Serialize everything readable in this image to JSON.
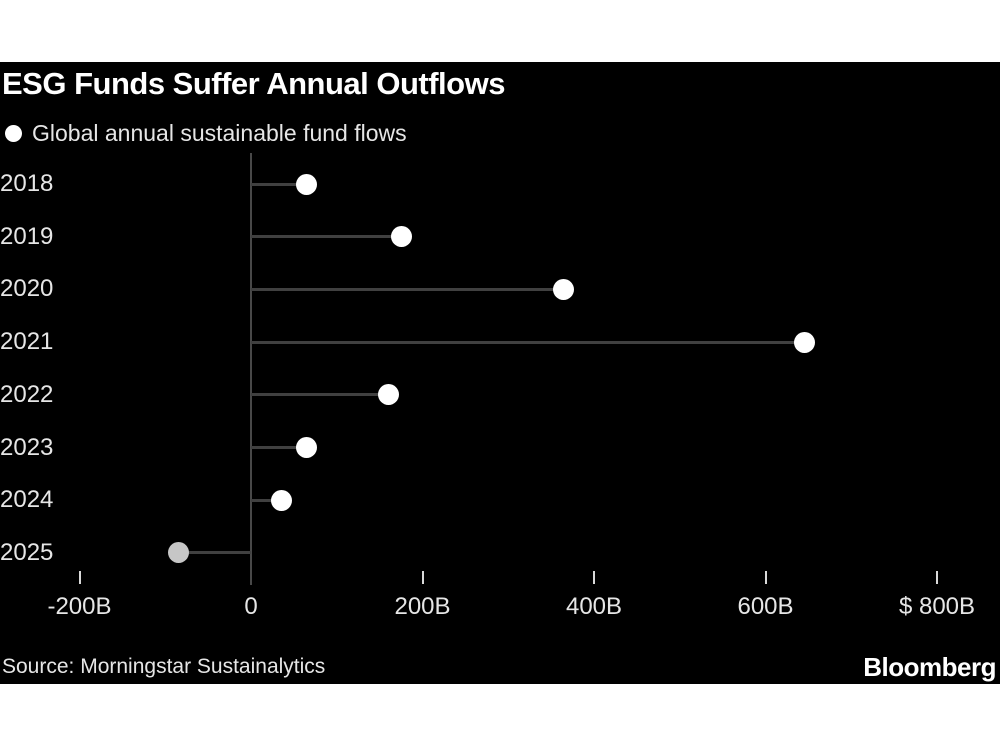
{
  "header": {
    "title": "ESG Funds Suffer Annual Outflows"
  },
  "legend": {
    "marker": "circle-icon",
    "label": "Global annual sustainable fund flows"
  },
  "chart_data": {
    "type": "scatter",
    "subtype": "lollipop",
    "orientation": "horizontal",
    "title": "ESG Funds Suffer Annual Outflows",
    "series_name": "Global annual sustainable fund flows",
    "categories": [
      "2018",
      "2019",
      "2020",
      "2021",
      "2022",
      "2023",
      "2024",
      "2025"
    ],
    "values": [
      65,
      175,
      365,
      645,
      160,
      65,
      35,
      -85
    ],
    "unit": "billions of US dollars",
    "xlabel": "",
    "ylabel": "",
    "xlim": [
      -200,
      800
    ],
    "grid": false,
    "legend_position": "top-left",
    "x_ticks": [
      {
        "value": -200,
        "label": "-200B"
      },
      {
        "value": 0,
        "label": "0"
      },
      {
        "value": 200,
        "label": "200B"
      },
      {
        "value": 400,
        "label": "400B"
      },
      {
        "value": 600,
        "label": "600B"
      },
      {
        "value": 800,
        "label": "$ 800B"
      }
    ],
    "muted_categories": [
      "2025"
    ]
  },
  "footer": {
    "source": "Source: Morningstar Sustainalytics",
    "brand": "Bloomberg"
  },
  "colors": {
    "page_background": "#ffffff",
    "background": "#000000",
    "title": "#ffffff",
    "text": "#e6e6e6",
    "dot": "#ffffff",
    "dot_muted": "#c6c6c6",
    "stem": "#404040",
    "axis": "#484848",
    "tick": "#d9d9d9"
  }
}
